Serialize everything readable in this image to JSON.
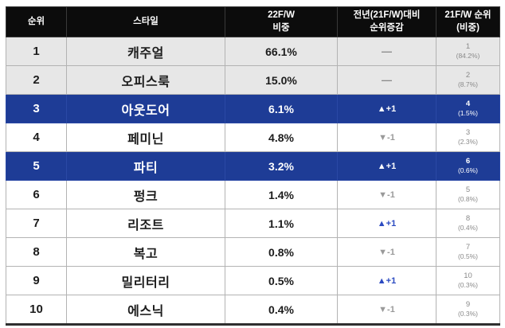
{
  "colors": {
    "header_bg": "#0c0c0c",
    "header_text": "#ffffff",
    "highlight_row_bg": "#1e3c96",
    "highlight_row_text": "#ffffff",
    "gray_row_bg": "#e7e7e7",
    "up_change_text": "#2b4ac1",
    "down_change_text": "#9a9a9a",
    "prev_col_text": "#8a8a8a"
  },
  "table": {
    "columns": [
      {
        "key": "rank",
        "label_lines": [
          "순위"
        ]
      },
      {
        "key": "style",
        "label_lines": [
          "스타일"
        ]
      },
      {
        "key": "share",
        "label_lines": [
          "22F/W",
          "비중"
        ]
      },
      {
        "key": "change",
        "label_lines": [
          "전년(21F/W)대비",
          "순위증감"
        ]
      },
      {
        "key": "prev",
        "label_lines": [
          "21F/W 순위",
          "(비중)"
        ]
      }
    ],
    "rows": [
      {
        "rank": "1",
        "style": "캐주얼",
        "share": "66.1%",
        "change": "—",
        "change_dir": "none",
        "prev_rank": "1",
        "prev_share": "(84.2%)",
        "variant": "gray"
      },
      {
        "rank": "2",
        "style": "오피스룩",
        "share": "15.0%",
        "change": "—",
        "change_dir": "none",
        "prev_rank": "2",
        "prev_share": "(8.7%)",
        "variant": "gray"
      },
      {
        "rank": "3",
        "style": "아웃도어",
        "share": "6.1%",
        "change": "▲+1",
        "change_dir": "up",
        "prev_rank": "4",
        "prev_share": "(1.5%)",
        "variant": "blue"
      },
      {
        "rank": "4",
        "style": "페미닌",
        "share": "4.8%",
        "change": "▼-1",
        "change_dir": "down",
        "prev_rank": "3",
        "prev_share": "(2.3%)",
        "variant": "white"
      },
      {
        "rank": "5",
        "style": "파티",
        "share": "3.2%",
        "change": "▲+1",
        "change_dir": "up",
        "prev_rank": "6",
        "prev_share": "(0.6%)",
        "variant": "blue"
      },
      {
        "rank": "6",
        "style": "펑크",
        "share": "1.4%",
        "change": "▼-1",
        "change_dir": "down",
        "prev_rank": "5",
        "prev_share": "(0.8%)",
        "variant": "white"
      },
      {
        "rank": "7",
        "style": "리조트",
        "share": "1.1%",
        "change": "▲+1",
        "change_dir": "up",
        "prev_rank": "8",
        "prev_share": "(0.4%)",
        "variant": "white"
      },
      {
        "rank": "8",
        "style": "복고",
        "share": "0.8%",
        "change": "▼-1",
        "change_dir": "down",
        "prev_rank": "7",
        "prev_share": "(0.5%)",
        "variant": "white"
      },
      {
        "rank": "9",
        "style": "밀리터리",
        "share": "0.5%",
        "change": "▲+1",
        "change_dir": "up",
        "prev_rank": "10",
        "prev_share": "(0.3%)",
        "variant": "white"
      },
      {
        "rank": "10",
        "style": "에스닉",
        "share": "0.4%",
        "change": "▼-1",
        "change_dir": "down",
        "prev_rank": "9",
        "prev_share": "(0.3%)",
        "variant": "white"
      }
    ]
  },
  "chart_data": {
    "type": "table",
    "columns": [
      "순위",
      "스타일",
      "22F/W 비중",
      "전년(21F/W)대비 순위증감",
      "21F/W 순위(비중)"
    ],
    "rows": [
      [
        1,
        "캐주얼",
        "66.1%",
        "—",
        "1 (84.2%)"
      ],
      [
        2,
        "오피스룩",
        "15.0%",
        "—",
        "2 (8.7%)"
      ],
      [
        3,
        "아웃도어",
        "6.1%",
        "▲+1",
        "4 (1.5%)"
      ],
      [
        4,
        "페미닌",
        "4.8%",
        "▼-1",
        "3 (2.3%)"
      ],
      [
        5,
        "파티",
        "3.2%",
        "▲+1",
        "6 (0.6%)"
      ],
      [
        6,
        "펑크",
        "1.4%",
        "▼-1",
        "5 (0.8%)"
      ],
      [
        7,
        "리조트",
        "1.1%",
        "▲+1",
        "8 (0.4%)"
      ],
      [
        8,
        "복고",
        "0.8%",
        "▼-1",
        "7 (0.5%)"
      ],
      [
        9,
        "밀리터리",
        "0.5%",
        "▲+1",
        "10 (0.3%)"
      ],
      [
        10,
        "에스닉",
        "0.4%",
        "▼-1",
        "9 (0.3%)"
      ]
    ],
    "highlighted_rows": [
      3,
      5
    ],
    "share_values_22fw": [
      66.1,
      15.0,
      6.1,
      4.8,
      3.2,
      1.4,
      1.1,
      0.8,
      0.5,
      0.4
    ],
    "share_values_21fw": [
      84.2,
      8.7,
      1.5,
      2.3,
      0.6,
      0.8,
      0.4,
      0.5,
      0.3,
      0.3
    ],
    "rank_change": [
      0,
      0,
      1,
      -1,
      1,
      -1,
      1,
      -1,
      1,
      -1
    ]
  }
}
